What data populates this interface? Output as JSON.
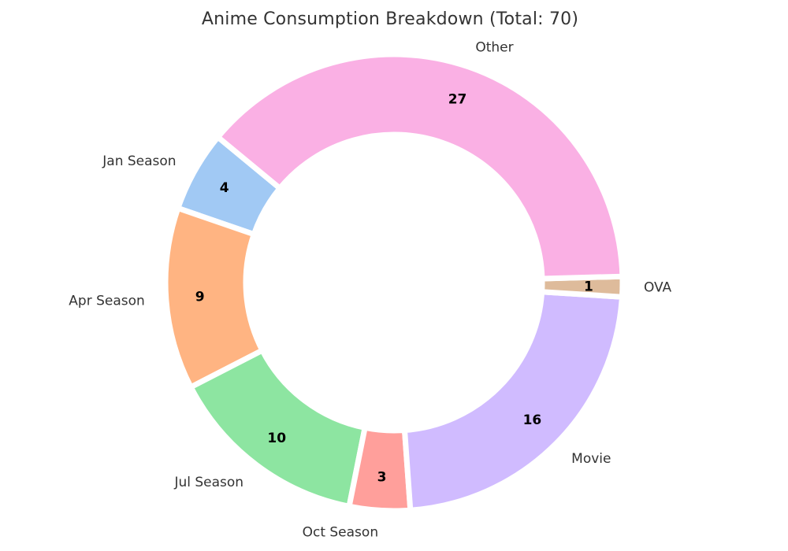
{
  "chart_data": {
    "type": "pie",
    "subtype": "donut",
    "title": "Anime Consumption Breakdown (Total: 70)",
    "total": 70,
    "categories": [
      "Jan Season",
      "Apr Season",
      "Jul Season",
      "Oct Season",
      "Movie",
      "OVA",
      "Other"
    ],
    "values": [
      4,
      9,
      10,
      3,
      16,
      1,
      27
    ],
    "colors": [
      "#a1c9f4",
      "#ffb482",
      "#8de5a1",
      "#ff9f9b",
      "#d0bbff",
      "#debb9b",
      "#fab0e4"
    ],
    "layout": {
      "start_angle_deg": 140.4,
      "direction": "counterclockwise",
      "donut_hole_ratio": 0.65,
      "legend": "none",
      "background": "#ffffff",
      "title_color": "#333333",
      "category_label_color": "#333333",
      "value_label_color": "#000000",
      "wedge_separator_color": "#ffffff"
    }
  }
}
